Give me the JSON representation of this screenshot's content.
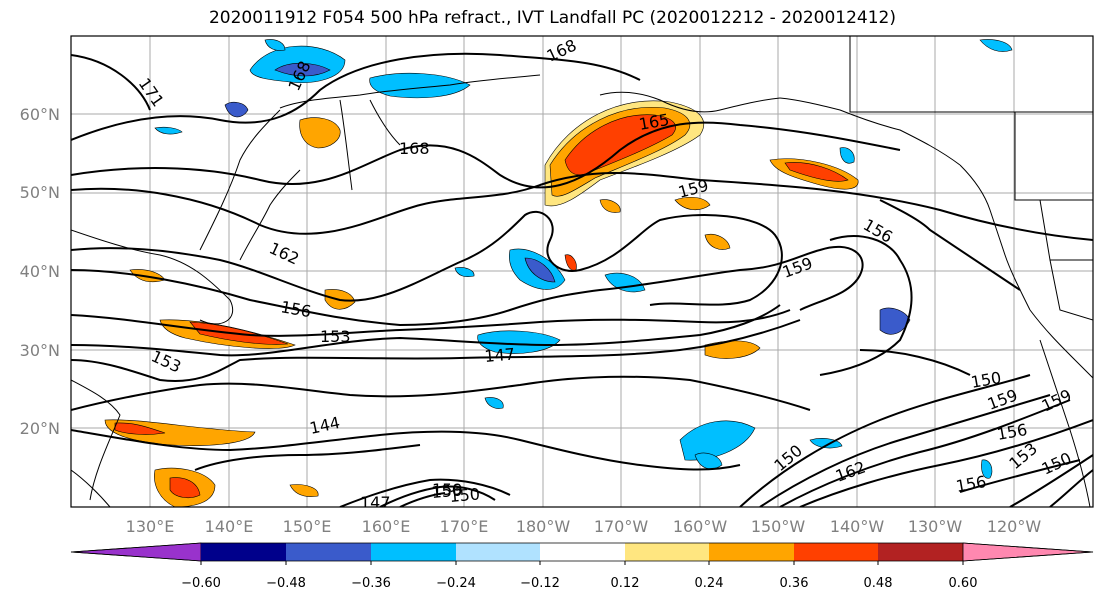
{
  "title": "2020011912 F054 500 hPa refract., IVT Landfall PC (2020012212 - 2020012412)",
  "map": {
    "lat_ticks": [
      "60°N",
      "50°N",
      "40°N",
      "30°N",
      "20°N"
    ],
    "lon_ticks": [
      "130°E",
      "140°E",
      "150°E",
      "160°E",
      "170°E",
      "180°W",
      "170°W",
      "160°W",
      "150°W",
      "140°W",
      "130°W",
      "120°W"
    ],
    "contour_labels": [
      "171",
      "168",
      "168",
      "168",
      "165",
      "162",
      "159",
      "159",
      "159",
      "159",
      "156",
      "156",
      "156",
      "156",
      "156",
      "153",
      "153",
      "153",
      "150",
      "150",
      "150",
      "147",
      "147",
      "144",
      "162",
      "150",
      "159"
    ]
  },
  "colorbar": {
    "tick_labels": [
      "−0.60",
      "−0.48",
      "−0.36",
      "−0.24",
      "−0.12",
      "0.12",
      "0.24",
      "0.36",
      "0.48",
      "0.60"
    ],
    "colors": [
      "#9932cc",
      "#00008b",
      "#3a5bcb",
      "#00bfff",
      "#b0e2ff",
      "#ffffff",
      "#ffe680",
      "#ffa500",
      "#ff4000",
      "#b22222",
      "#ff88b0"
    ]
  }
}
